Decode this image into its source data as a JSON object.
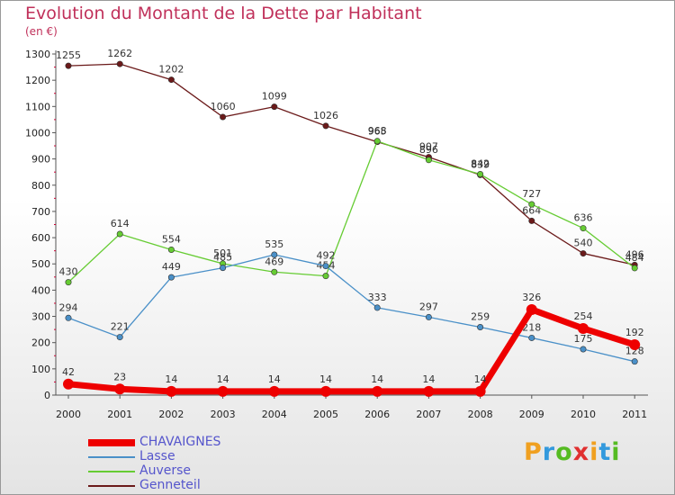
{
  "page": {
    "title": "Evolution du Montant de la Dette par Habitant",
    "subtitle": "(en €)",
    "logo": {
      "text": "Proxiti",
      "colors": [
        "#f0a020",
        "#3399dd",
        "#55bb22",
        "#e03030"
      ]
    }
  },
  "chart_data": {
    "type": "line",
    "title": "Evolution du Montant de la Dette par Habitant",
    "ylabel": "(en €)",
    "xlabel": "",
    "x": [
      "2000",
      "2001",
      "2002",
      "2003",
      "2004",
      "2005",
      "2006",
      "2007",
      "2008",
      "2009",
      "2010",
      "2011"
    ],
    "ylim": [
      0,
      1300
    ],
    "yticks": [
      0,
      100,
      200,
      300,
      400,
      500,
      600,
      700,
      800,
      900,
      1000,
      1100,
      1200,
      1300
    ],
    "grid": false,
    "legend": "bottom-left",
    "series": [
      {
        "name": "CHAVAIGNES",
        "color": "#ee0000",
        "values": [
          42,
          23,
          14,
          14,
          14,
          14,
          14,
          14,
          14,
          326,
          254,
          192
        ]
      },
      {
        "name": "Lasse",
        "color": "#4a90c8",
        "values": [
          294,
          221,
          449,
          485,
          535,
          492,
          333,
          297,
          259,
          218,
          175,
          128
        ]
      },
      {
        "name": "Auverse",
        "color": "#66cc33",
        "values": [
          430,
          614,
          554,
          501,
          469,
          454,
          968,
          896,
          842,
          727,
          636,
          484
        ]
      },
      {
        "name": "Genneteil",
        "color": "#6b1a1a",
        "values": [
          1255,
          1262,
          1202,
          1060,
          1099,
          1026,
          965,
          907,
          839,
          664,
          540,
          496
        ]
      }
    ]
  }
}
